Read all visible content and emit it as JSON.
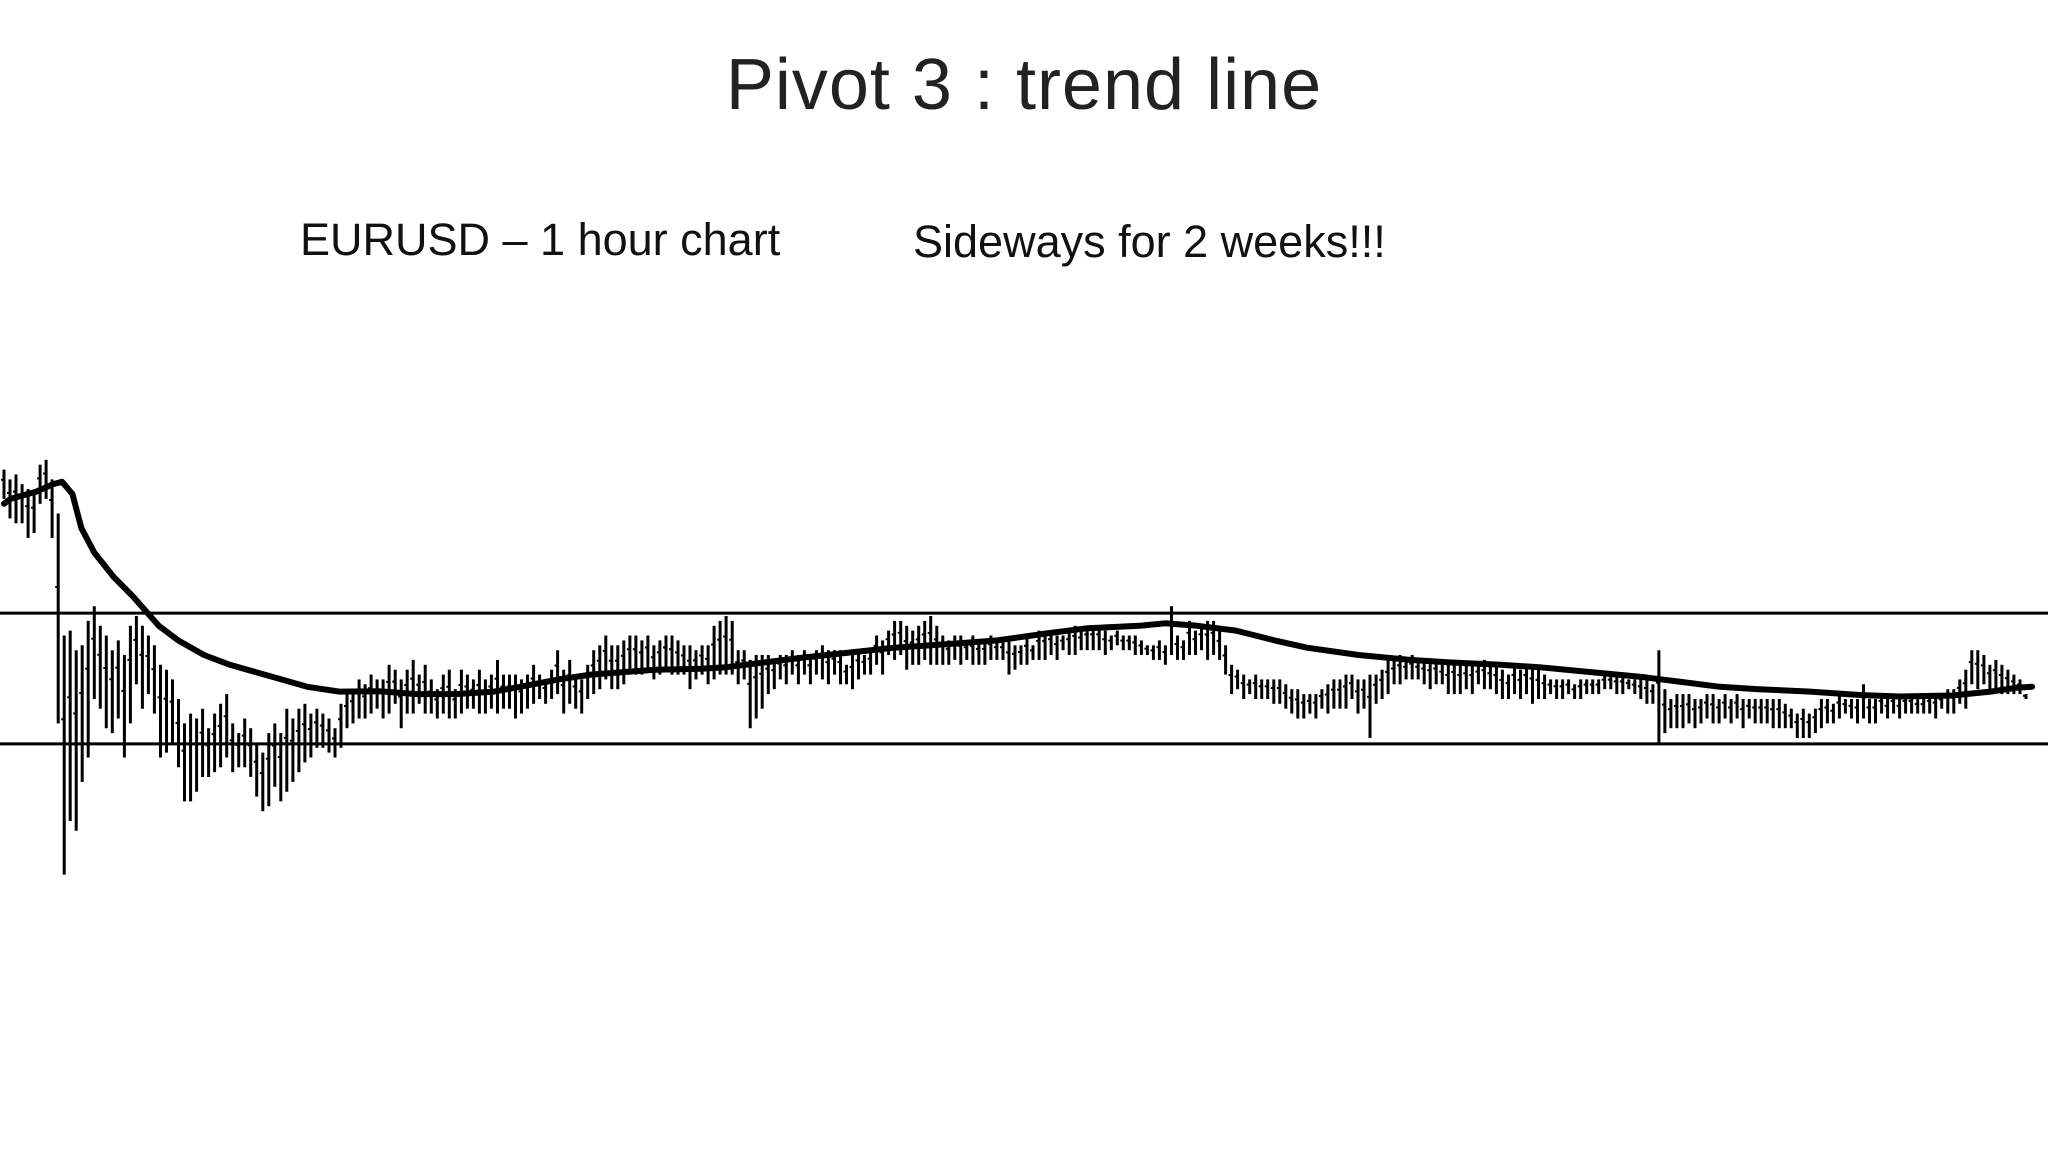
{
  "slide": {
    "title": "Pivot 3 : trend line",
    "chart_label": "EURUSD – 1 hour chart",
    "comment": "Sideways for 2 weeks!!!"
  },
  "colors": {
    "background": "#ffffff",
    "bars": "#000000",
    "moving_average": "#000000",
    "range_lines": "#000000"
  },
  "chart_data": {
    "type": "ohlc",
    "title": "EURUSD – 1 hour chart",
    "xlabel": "",
    "ylabel": "",
    "grid": false,
    "axes_visible": false,
    "ylim": [
      0,
      100
    ],
    "range_lines": {
      "upper": 50.6,
      "lower": 23.8
    },
    "bars": [
      [
        80,
        74
      ],
      [
        78,
        70
      ],
      [
        79,
        69
      ],
      [
        77,
        69
      ],
      [
        76,
        66
      ],
      [
        75,
        67
      ],
      [
        81,
        73
      ],
      [
        82,
        74
      ],
      [
        78,
        66
      ],
      [
        71,
        28
      ],
      [
        46,
        -3
      ],
      [
        47,
        8
      ],
      [
        43,
        6
      ],
      [
        44,
        16
      ],
      [
        49,
        21
      ],
      [
        52,
        33
      ],
      [
        48,
        31
      ],
      [
        46,
        27
      ],
      [
        43,
        26
      ],
      [
        45,
        29
      ],
      [
        42,
        21
      ],
      [
        48,
        28
      ],
      [
        50,
        36
      ],
      [
        48,
        31
      ],
      [
        46,
        34
      ],
      [
        44,
        30
      ],
      [
        40,
        21
      ],
      [
        39,
        22
      ],
      [
        37,
        24
      ],
      [
        33,
        19
      ],
      [
        28,
        12
      ],
      [
        30,
        12
      ],
      [
        29,
        14
      ],
      [
        31,
        17
      ],
      [
        27,
        17
      ],
      [
        30,
        18
      ],
      [
        32,
        19
      ],
      [
        34,
        21
      ],
      [
        28,
        18
      ],
      [
        26,
        19
      ],
      [
        29,
        19
      ],
      [
        27,
        17
      ],
      [
        24,
        13
      ],
      [
        22,
        10
      ],
      [
        26,
        11
      ],
      [
        28,
        15
      ],
      [
        26,
        12
      ],
      [
        31,
        14
      ],
      [
        29,
        16
      ],
      [
        31,
        18
      ],
      [
        32,
        20
      ],
      [
        30,
        21
      ],
      [
        31,
        23
      ],
      [
        30,
        23
      ],
      [
        29,
        22
      ],
      [
        27,
        21
      ],
      [
        32,
        23
      ],
      [
        34,
        27
      ],
      [
        35,
        28
      ],
      [
        37,
        29
      ],
      [
        36,
        29
      ],
      [
        38,
        30
      ],
      [
        37,
        31
      ],
      [
        37,
        29
      ],
      [
        40,
        30
      ],
      [
        39,
        32
      ],
      [
        37,
        27
      ],
      [
        39,
        30
      ],
      [
        41,
        30
      ],
      [
        38,
        32
      ],
      [
        40,
        30
      ],
      [
        37,
        30
      ],
      [
        35,
        29
      ],
      [
        38,
        30
      ],
      [
        39,
        29
      ],
      [
        35,
        29
      ],
      [
        39,
        30
      ],
      [
        38,
        31
      ],
      [
        37,
        31
      ],
      [
        39,
        30
      ],
      [
        37,
        30
      ],
      [
        38,
        31
      ],
      [
        41,
        30
      ],
      [
        38,
        31
      ],
      [
        38,
        31
      ],
      [
        38,
        29
      ],
      [
        37,
        30
      ],
      [
        38,
        31
      ],
      [
        40,
        32
      ],
      [
        38,
        33
      ],
      [
        37,
        32
      ],
      [
        39,
        33
      ],
      [
        43,
        34
      ],
      [
        39,
        30
      ],
      [
        41,
        32
      ],
      [
        38,
        31
      ],
      [
        37,
        30
      ],
      [
        40,
        33
      ],
      [
        43,
        34
      ],
      [
        44,
        35
      ],
      [
        46,
        37
      ],
      [
        44,
        35
      ],
      [
        44,
        35
      ],
      [
        45,
        36
      ],
      [
        46,
        38
      ],
      [
        46,
        38
      ],
      [
        45,
        38
      ],
      [
        46,
        39
      ],
      [
        44,
        37
      ],
      [
        45,
        38
      ],
      [
        46,
        39
      ],
      [
        46,
        38
      ],
      [
        45,
        38
      ],
      [
        44,
        38
      ],
      [
        44,
        35
      ],
      [
        43,
        37
      ],
      [
        44,
        38
      ],
      [
        44,
        36
      ],
      [
        48,
        37
      ],
      [
        49,
        38
      ],
      [
        50,
        38
      ],
      [
        49,
        38
      ],
      [
        43,
        36
      ],
      [
        43,
        37
      ],
      [
        41,
        27
      ],
      [
        42,
        29
      ],
      [
        42,
        31
      ],
      [
        42,
        34
      ],
      [
        41,
        35
      ],
      [
        42,
        37
      ],
      [
        42,
        36
      ],
      [
        43,
        38
      ],
      [
        42,
        36
      ],
      [
        43,
        38
      ],
      [
        42,
        36
      ],
      [
        43,
        38
      ],
      [
        44,
        37
      ],
      [
        43,
        36
      ],
      [
        43,
        38
      ],
      [
        43,
        36
      ],
      [
        40,
        36
      ],
      [
        42,
        35
      ],
      [
        43,
        37
      ],
      [
        42,
        38
      ],
      [
        43,
        38
      ],
      [
        46,
        40
      ],
      [
        45,
        38
      ],
      [
        47,
        42
      ],
      [
        49,
        41
      ],
      [
        49,
        42
      ],
      [
        48,
        39
      ],
      [
        47,
        40
      ],
      [
        48,
        40
      ],
      [
        49,
        41
      ],
      [
        50,
        40
      ],
      [
        48,
        40
      ],
      [
        46,
        40
      ],
      [
        45,
        40
      ],
      [
        46,
        41
      ],
      [
        46,
        40
      ],
      [
        45,
        41
      ],
      [
        46,
        40
      ],
      [
        45,
        40
      ],
      [
        45,
        40
      ],
      [
        46,
        41
      ],
      [
        45,
        41
      ],
      [
        45,
        41
      ],
      [
        45,
        38
      ],
      [
        44,
        39
      ],
      [
        44,
        40
      ],
      [
        46,
        40
      ],
      [
        44,
        41
      ],
      [
        47,
        41
      ],
      [
        47,
        41
      ],
      [
        47,
        42
      ],
      [
        46,
        41
      ],
      [
        46,
        43
      ],
      [
        47,
        42
      ],
      [
        48,
        42
      ],
      [
        47,
        43
      ],
      [
        48,
        43
      ],
      [
        48,
        43
      ],
      [
        48,
        43
      ],
      [
        47,
        42
      ],
      [
        46,
        43
      ],
      [
        47,
        44
      ],
      [
        46,
        43
      ],
      [
        46,
        43
      ],
      [
        46,
        42
      ],
      [
        45,
        42
      ],
      [
        44,
        42
      ],
      [
        44,
        41
      ],
      [
        45,
        41
      ],
      [
        44,
        40
      ],
      [
        52,
        42
      ],
      [
        46,
        41
      ],
      [
        45,
        41
      ],
      [
        49,
        42
      ],
      [
        47,
        42
      ],
      [
        48,
        43
      ],
      [
        49,
        41
      ],
      [
        49,
        42
      ],
      [
        47,
        41
      ],
      [
        44,
        38
      ],
      [
        40,
        34
      ],
      [
        39,
        35
      ],
      [
        38,
        33
      ],
      [
        37,
        34
      ],
      [
        38,
        33
      ],
      [
        37,
        33
      ],
      [
        37,
        33
      ],
      [
        37,
        32
      ],
      [
        37,
        32
      ],
      [
        36,
        31
      ],
      [
        35,
        30
      ],
      [
        35,
        29
      ],
      [
        34,
        29
      ],
      [
        34,
        30
      ],
      [
        34,
        29
      ],
      [
        35,
        31
      ],
      [
        36,
        30
      ],
      [
        37,
        31
      ],
      [
        37,
        31
      ],
      [
        38,
        31
      ],
      [
        38,
        33
      ],
      [
        37,
        30
      ],
      [
        37,
        31
      ],
      [
        38,
        25
      ],
      [
        38,
        32
      ],
      [
        39,
        33
      ],
      [
        41,
        34
      ],
      [
        41,
        36
      ],
      [
        42,
        36
      ],
      [
        41,
        37
      ],
      [
        42,
        37
      ],
      [
        41,
        37
      ],
      [
        41,
        36
      ],
      [
        41,
        35
      ],
      [
        41,
        36
      ],
      [
        40,
        36
      ],
      [
        40,
        34
      ],
      [
        41,
        34
      ],
      [
        40,
        34
      ],
      [
        40,
        35
      ],
      [
        40,
        34
      ],
      [
        40,
        36
      ],
      [
        41,
        35
      ],
      [
        40,
        35
      ],
      [
        40,
        34
      ],
      [
        39,
        33
      ],
      [
        38,
        33
      ],
      [
        40,
        34
      ],
      [
        39,
        33
      ],
      [
        40,
        34
      ],
      [
        40,
        32
      ],
      [
        39,
        33
      ],
      [
        38,
        33
      ],
      [
        37,
        34
      ],
      [
        37,
        33
      ],
      [
        37,
        33
      ],
      [
        37,
        34
      ],
      [
        36,
        33
      ],
      [
        37,
        33
      ],
      [
        37,
        34
      ],
      [
        37,
        34
      ],
      [
        37,
        34
      ],
      [
        38,
        35
      ],
      [
        38,
        35
      ],
      [
        38,
        34
      ],
      [
        38,
        34
      ],
      [
        37,
        35
      ],
      [
        37,
        34
      ],
      [
        37,
        33
      ],
      [
        37,
        32
      ],
      [
        36,
        32
      ],
      [
        43,
        24
      ],
      [
        35,
        26
      ],
      [
        33,
        27
      ],
      [
        34,
        27
      ],
      [
        34,
        27
      ],
      [
        34,
        28
      ],
      [
        33,
        27
      ],
      [
        33,
        28
      ],
      [
        34,
        29
      ],
      [
        34,
        28
      ],
      [
        33,
        28
      ],
      [
        34,
        29
      ],
      [
        33,
        28
      ],
      [
        34,
        29
      ],
      [
        33,
        27
      ],
      [
        33,
        29
      ],
      [
        33,
        28
      ],
      [
        33,
        28
      ],
      [
        33,
        28
      ],
      [
        33,
        27
      ],
      [
        33,
        27
      ],
      [
        32,
        27
      ],
      [
        31,
        27
      ],
      [
        30,
        25
      ],
      [
        31,
        25
      ],
      [
        30,
        25
      ],
      [
        31,
        26
      ],
      [
        33,
        27
      ],
      [
        33,
        28
      ],
      [
        32,
        28
      ],
      [
        34,
        29
      ],
      [
        33,
        30
      ],
      [
        33,
        29
      ],
      [
        33,
        28
      ],
      [
        36,
        29
      ],
      [
        33,
        28
      ],
      [
        33,
        28
      ],
      [
        34,
        30
      ],
      [
        33,
        29
      ],
      [
        34,
        30
      ],
      [
        33,
        29
      ],
      [
        34,
        30
      ],
      [
        34,
        30
      ],
      [
        33,
        30
      ],
      [
        33,
        30
      ],
      [
        34,
        30
      ],
      [
        34,
        29
      ],
      [
        34,
        31
      ],
      [
        35,
        30
      ],
      [
        35,
        30
      ],
      [
        37,
        32
      ],
      [
        39,
        31
      ],
      [
        43,
        36
      ],
      [
        43,
        35
      ],
      [
        42,
        36
      ],
      [
        40,
        35
      ],
      [
        41,
        35
      ],
      [
        40,
        34
      ],
      [
        39,
        34
      ],
      [
        38,
        34
      ],
      [
        37,
        34
      ],
      [
        34,
        33
      ]
    ],
    "moving_average": [
      [
        0,
        73
      ],
      [
        5,
        74
      ],
      [
        25,
        75.5
      ],
      [
        38,
        77
      ],
      [
        45,
        77.5
      ],
      [
        53,
        75
      ],
      [
        60,
        68
      ],
      [
        70,
        63
      ],
      [
        85,
        58
      ],
      [
        100,
        54
      ],
      [
        110,
        51
      ],
      [
        120,
        48
      ],
      [
        135,
        45
      ],
      [
        155,
        42
      ],
      [
        175,
        40
      ],
      [
        195,
        38.5
      ],
      [
        215,
        37
      ],
      [
        235,
        35.5
      ],
      [
        260,
        34.5
      ],
      [
        290,
        34.6
      ],
      [
        320,
        34
      ],
      [
        350,
        34
      ],
      [
        380,
        34.5
      ],
      [
        400,
        35.5
      ],
      [
        430,
        37
      ],
      [
        455,
        38
      ],
      [
        480,
        38.5
      ],
      [
        505,
        39
      ],
      [
        540,
        39.2
      ],
      [
        560,
        39.5
      ],
      [
        590,
        40.5
      ],
      [
        620,
        41.5
      ],
      [
        655,
        42.5
      ],
      [
        690,
        43.5
      ],
      [
        730,
        44.2
      ],
      [
        770,
        45
      ],
      [
        810,
        46.5
      ],
      [
        840,
        47.5
      ],
      [
        880,
        48
      ],
      [
        900,
        48.5
      ],
      [
        925,
        48
      ],
      [
        955,
        47
      ],
      [
        985,
        45
      ],
      [
        1010,
        43.5
      ],
      [
        1050,
        42
      ],
      [
        1090,
        41
      ],
      [
        1120,
        40.5
      ],
      [
        1160,
        40
      ],
      [
        1190,
        39.5
      ],
      [
        1230,
        38.5
      ],
      [
        1270,
        37.5
      ],
      [
        1300,
        36.5
      ],
      [
        1330,
        35.5
      ],
      [
        1360,
        35
      ],
      [
        1400,
        34.5
      ],
      [
        1440,
        33.8
      ],
      [
        1470,
        33.5
      ],
      [
        1510,
        33.7
      ],
      [
        1540,
        34.5
      ],
      [
        1560,
        35.3
      ],
      [
        1572,
        35.5
      ]
    ]
  }
}
